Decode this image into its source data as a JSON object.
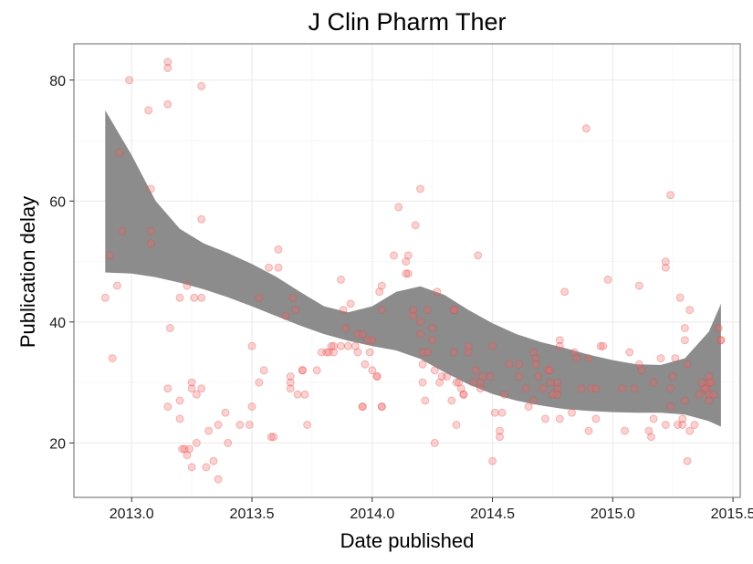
{
  "chart_data": {
    "type": "scatter",
    "title": "J Clin Pharm Ther",
    "xlabel": "Date published",
    "ylabel": "Publication delay",
    "xlim": [
      2012.76,
      2015.53
    ],
    "ylim": [
      11,
      86
    ],
    "x_ticks": [
      2013.0,
      2013.5,
      2014.0,
      2014.5,
      2015.0,
      2015.5
    ],
    "x_tick_labels": [
      "2013.0",
      "2013.5",
      "2014.0",
      "2014.5",
      "2015.0",
      "2015.5"
    ],
    "y_ticks": [
      20,
      40,
      60,
      80
    ],
    "y_tick_labels": [
      "20",
      "40",
      "60",
      "80"
    ],
    "grid": true,
    "legend": "none",
    "colors": {
      "points": "#f26b6b",
      "band": "#8c8c8c",
      "grid": "#ebebeb",
      "frame": "#7f7f7f"
    },
    "points": [
      [
        2012.89,
        44
      ],
      [
        2012.91,
        51
      ],
      [
        2012.92,
        34
      ],
      [
        2012.94,
        46
      ],
      [
        2012.95,
        68
      ],
      [
        2012.96,
        55
      ],
      [
        2012.99,
        80
      ],
      [
        2013.07,
        75
      ],
      [
        2013.08,
        62
      ],
      [
        2013.08,
        55
      ],
      [
        2013.08,
        53
      ],
      [
        2013.15,
        83
      ],
      [
        2013.15,
        82
      ],
      [
        2013.15,
        76
      ],
      [
        2013.15,
        29
      ],
      [
        2013.15,
        26
      ],
      [
        2013.16,
        39
      ],
      [
        2013.2,
        44
      ],
      [
        2013.2,
        27
      ],
      [
        2013.2,
        24
      ],
      [
        2013.21,
        19
      ],
      [
        2013.22,
        19
      ],
      [
        2013.23,
        46
      ],
      [
        2013.23,
        18
      ],
      [
        2013.24,
        19
      ],
      [
        2013.25,
        30
      ],
      [
        2013.25,
        29
      ],
      [
        2013.25,
        16
      ],
      [
        2013.26,
        44
      ],
      [
        2013.27,
        20
      ],
      [
        2013.27,
        28
      ],
      [
        2013.29,
        79
      ],
      [
        2013.29,
        57
      ],
      [
        2013.29,
        44
      ],
      [
        2013.29,
        29
      ],
      [
        2013.31,
        16
      ],
      [
        2013.32,
        22
      ],
      [
        2013.34,
        17
      ],
      [
        2013.36,
        14
      ],
      [
        2013.36,
        23
      ],
      [
        2013.39,
        25
      ],
      [
        2013.4,
        20
      ],
      [
        2013.45,
        23
      ],
      [
        2013.49,
        23
      ],
      [
        2013.5,
        26
      ],
      [
        2013.5,
        36
      ],
      [
        2013.53,
        44
      ],
      [
        2013.53,
        30
      ],
      [
        2013.55,
        32
      ],
      [
        2013.57,
        49
      ],
      [
        2013.58,
        21
      ],
      [
        2013.59,
        21
      ],
      [
        2013.61,
        52
      ],
      [
        2013.61,
        49
      ],
      [
        2013.64,
        41
      ],
      [
        2013.66,
        29
      ],
      [
        2013.66,
        30
      ],
      [
        2013.66,
        31
      ],
      [
        2013.67,
        44
      ],
      [
        2013.68,
        42
      ],
      [
        2013.69,
        28
      ],
      [
        2013.71,
        32
      ],
      [
        2013.71,
        32
      ],
      [
        2013.72,
        28
      ],
      [
        2013.73,
        23
      ],
      [
        2013.77,
        32
      ],
      [
        2013.79,
        35
      ],
      [
        2013.81,
        35
      ],
      [
        2013.82,
        35
      ],
      [
        2013.83,
        36
      ],
      [
        2013.84,
        36
      ],
      [
        2013.84,
        35
      ],
      [
        2013.87,
        47
      ],
      [
        2013.87,
        36
      ],
      [
        2013.88,
        42
      ],
      [
        2013.89,
        39
      ],
      [
        2013.9,
        36
      ],
      [
        2013.91,
        43
      ],
      [
        2013.93,
        36
      ],
      [
        2013.94,
        35
      ],
      [
        2013.94,
        38
      ],
      [
        2013.96,
        26
      ],
      [
        2013.96,
        26
      ],
      [
        2013.96,
        38
      ],
      [
        2013.97,
        33
      ],
      [
        2013.98,
        37
      ],
      [
        2013.99,
        35
      ],
      [
        2014.0,
        37
      ],
      [
        2014.0,
        32
      ],
      [
        2014.02,
        31
      ],
      [
        2014.02,
        31
      ],
      [
        2014.03,
        45
      ],
      [
        2014.04,
        42
      ],
      [
        2014.04,
        46
      ],
      [
        2014.04,
        26
      ],
      [
        2014.04,
        26
      ],
      [
        2014.09,
        51
      ],
      [
        2014.11,
        59
      ],
      [
        2014.14,
        48
      ],
      [
        2014.14,
        50
      ],
      [
        2014.15,
        48
      ],
      [
        2014.15,
        51
      ],
      [
        2014.17,
        42
      ],
      [
        2014.17,
        41
      ],
      [
        2014.18,
        56
      ],
      [
        2014.2,
        62
      ],
      [
        2014.2,
        40
      ],
      [
        2014.2,
        38
      ],
      [
        2014.21,
        35
      ],
      [
        2014.21,
        33
      ],
      [
        2014.21,
        30
      ],
      [
        2014.22,
        27
      ],
      [
        2014.23,
        42
      ],
      [
        2014.23,
        35
      ],
      [
        2014.25,
        39
      ],
      [
        2014.25,
        37
      ],
      [
        2014.26,
        20
      ],
      [
        2014.26,
        32
      ],
      [
        2014.27,
        45
      ],
      [
        2014.28,
        30
      ],
      [
        2014.29,
        31
      ],
      [
        2014.31,
        31
      ],
      [
        2014.33,
        27
      ],
      [
        2014.34,
        42
      ],
      [
        2014.34,
        42
      ],
      [
        2014.34,
        35
      ],
      [
        2014.35,
        23
      ],
      [
        2014.35,
        30
      ],
      [
        2014.36,
        30
      ],
      [
        2014.37,
        29
      ],
      [
        2014.38,
        28
      ],
      [
        2014.38,
        28
      ],
      [
        2014.4,
        35
      ],
      [
        2014.4,
        36
      ],
      [
        2014.42,
        30
      ],
      [
        2014.43,
        32
      ],
      [
        2014.44,
        51
      ],
      [
        2014.45,
        29
      ],
      [
        2014.45,
        30
      ],
      [
        2014.46,
        31
      ],
      [
        2014.49,
        31
      ],
      [
        2014.5,
        17
      ],
      [
        2014.5,
        36
      ],
      [
        2014.51,
        25
      ],
      [
        2014.53,
        22
      ],
      [
        2014.53,
        21
      ],
      [
        2014.54,
        25
      ],
      [
        2014.55,
        28
      ],
      [
        2014.57,
        33
      ],
      [
        2014.61,
        31
      ],
      [
        2014.61,
        33
      ],
      [
        2014.64,
        29
      ],
      [
        2014.65,
        26
      ],
      [
        2014.67,
        27
      ],
      [
        2014.67,
        35
      ],
      [
        2014.68,
        33
      ],
      [
        2014.68,
        34
      ],
      [
        2014.69,
        31
      ],
      [
        2014.71,
        29
      ],
      [
        2014.72,
        24
      ],
      [
        2014.73,
        32
      ],
      [
        2014.74,
        30
      ],
      [
        2014.74,
        32
      ],
      [
        2014.75,
        28
      ],
      [
        2014.77,
        29
      ],
      [
        2014.77,
        30
      ],
      [
        2014.77,
        28
      ],
      [
        2014.78,
        37
      ],
      [
        2014.78,
        36
      ],
      [
        2014.78,
        24
      ],
      [
        2014.8,
        45
      ],
      [
        2014.83,
        25
      ],
      [
        2014.84,
        35
      ],
      [
        2014.85,
        34
      ],
      [
        2014.87,
        29
      ],
      [
        2014.89,
        72
      ],
      [
        2014.9,
        34
      ],
      [
        2014.9,
        22
      ],
      [
        2014.91,
        29
      ],
      [
        2014.93,
        29
      ],
      [
        2014.93,
        24
      ],
      [
        2014.95,
        36
      ],
      [
        2014.96,
        36
      ],
      [
        2014.98,
        47
      ],
      [
        2015.04,
        29
      ],
      [
        2015.05,
        22
      ],
      [
        2015.07,
        35
      ],
      [
        2015.09,
        29
      ],
      [
        2015.11,
        33
      ],
      [
        2015.11,
        46
      ],
      [
        2015.12,
        32
      ],
      [
        2015.15,
        22
      ],
      [
        2015.16,
        21
      ],
      [
        2015.17,
        24
      ],
      [
        2015.17,
        30
      ],
      [
        2015.2,
        34
      ],
      [
        2015.22,
        23
      ],
      [
        2015.22,
        49
      ],
      [
        2015.22,
        50
      ],
      [
        2015.24,
        61
      ],
      [
        2015.24,
        29
      ],
      [
        2015.24,
        26
      ],
      [
        2015.25,
        31
      ],
      [
        2015.26,
        34
      ],
      [
        2015.27,
        23
      ],
      [
        2015.28,
        44
      ],
      [
        2015.29,
        23
      ],
      [
        2015.29,
        24
      ],
      [
        2015.3,
        27
      ],
      [
        2015.3,
        39
      ],
      [
        2015.3,
        37
      ],
      [
        2015.31,
        17
      ],
      [
        2015.31,
        33
      ],
      [
        2015.32,
        42
      ],
      [
        2015.32,
        22
      ],
      [
        2015.34,
        23
      ],
      [
        2015.36,
        28
      ],
      [
        2015.37,
        30
      ],
      [
        2015.38,
        29
      ],
      [
        2015.39,
        29
      ],
      [
        2015.4,
        30
      ],
      [
        2015.4,
        31
      ],
      [
        2015.4,
        28
      ],
      [
        2015.4,
        27
      ],
      [
        2015.41,
        30
      ],
      [
        2015.42,
        28
      ],
      [
        2015.44,
        39
      ],
      [
        2015.45,
        37
      ],
      [
        2015.45,
        37
      ]
    ],
    "smooth_band": {
      "x": [
        2012.89,
        2013.0,
        2013.1,
        2013.2,
        2013.3,
        2013.4,
        2013.5,
        2013.6,
        2013.7,
        2013.8,
        2013.9,
        2014.0,
        2014.1,
        2014.2,
        2014.3,
        2014.4,
        2014.5,
        2014.6,
        2014.7,
        2014.8,
        2014.9,
        2015.0,
        2015.1,
        2015.2,
        2015.3,
        2015.4,
        2015.45
      ],
      "lower": [
        48.2,
        48.0,
        47.4,
        46.5,
        45.4,
        44.1,
        42.6,
        41.0,
        39.4,
        38.0,
        36.9,
        36.0,
        35.3,
        33.9,
        31.7,
        29.7,
        28.1,
        27.0,
        26.2,
        25.6,
        25.3,
        25.1,
        25.0,
        25.0,
        24.7,
        23.6,
        22.7
      ],
      "upper": [
        75.0,
        67.6,
        60.0,
        55.4,
        53.0,
        51.4,
        49.6,
        47.5,
        45.0,
        42.6,
        41.6,
        42.6,
        45.0,
        45.9,
        44.5,
        42.0,
        39.8,
        38.0,
        36.7,
        35.7,
        34.6,
        33.7,
        33.0,
        32.9,
        34.0,
        38.4,
        43.0
      ]
    }
  }
}
